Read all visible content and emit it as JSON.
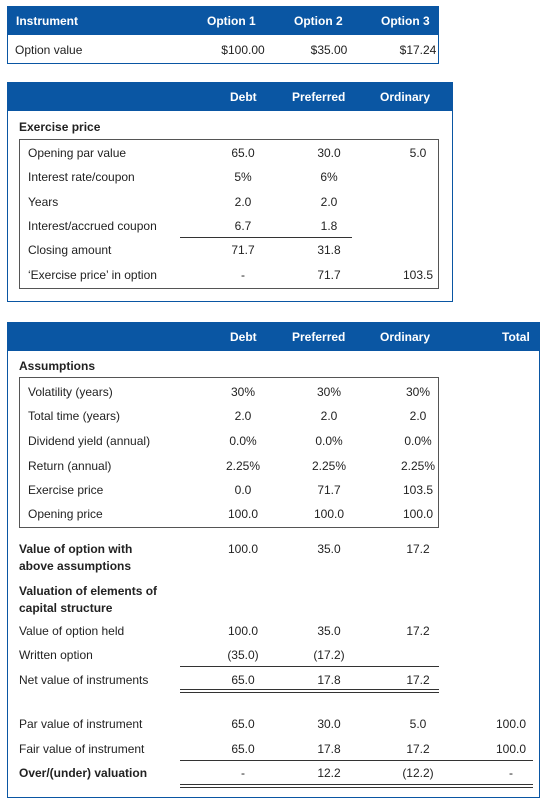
{
  "table1": {
    "headers": [
      "Instrument",
      "Option 1",
      "Option 2",
      "Option 3"
    ],
    "row": {
      "label": "Option value",
      "values": [
        "$100.00",
        "$35.00",
        "$17.24"
      ]
    }
  },
  "table2": {
    "headers": [
      "Debt",
      "Preferred",
      "Ordinary"
    ],
    "section": "Exercise price",
    "rows": [
      {
        "label": "Opening par value",
        "values": [
          "65.0",
          "30.0",
          "5.0"
        ]
      },
      {
        "label": "Interest rate/coupon",
        "values": [
          "5%",
          "6%",
          ""
        ]
      },
      {
        "label": "Years",
        "values": [
          "2.0",
          "2.0",
          ""
        ]
      },
      {
        "label": "Interest/accrued coupon",
        "values": [
          "6.7",
          "1.8",
          ""
        ]
      },
      {
        "label": "Closing amount",
        "values": [
          "71.7",
          "31.8",
          ""
        ]
      },
      {
        "label": "‘Exercise price’ in option",
        "values": [
          "-",
          "71.7",
          "103.5"
        ]
      }
    ]
  },
  "table3": {
    "headers": [
      "Debt",
      "Preferred",
      "Ordinary",
      "Total"
    ],
    "section": "Assumptions",
    "assumptions": [
      {
        "label": "Volatility (years)",
        "values": [
          "30%",
          "30%",
          "30%"
        ]
      },
      {
        "label": "Total time (years)",
        "values": [
          "2.0",
          "2.0",
          "2.0"
        ]
      },
      {
        "label": "Dividend yield (annual)",
        "values": [
          "0.0%",
          "0.0%",
          "0.0%"
        ]
      },
      {
        "label": "Return (annual)",
        "values": [
          "2.25%",
          "2.25%",
          "2.25%"
        ]
      },
      {
        "label": "Exercise price",
        "values": [
          "0.0",
          "71.7",
          "103.5"
        ]
      },
      {
        "label": "Opening price",
        "values": [
          "100.0",
          "100.0",
          "100.0"
        ]
      }
    ],
    "value_option_label_1": "Value of option with",
    "value_option_label_2": "above assumptions",
    "value_option_values": [
      "100.0",
      "35.0",
      "17.2"
    ],
    "valuation_label_1": "Valuation of elements of",
    "valuation_label_2": "capital structure",
    "valuation_rows": [
      {
        "label": "Value of option held",
        "values": [
          "100.0",
          "35.0",
          "17.2"
        ]
      },
      {
        "label": "Written option",
        "values": [
          "(35.0)",
          "(17.2)",
          ""
        ]
      },
      {
        "label": "Net value of instruments",
        "values": [
          "65.0",
          "17.8",
          "17.2"
        ]
      }
    ],
    "par_row": {
      "label": "Par value of instrument",
      "values": [
        "65.0",
        "30.0",
        "5.0",
        "100.0"
      ]
    },
    "fair_row": {
      "label": "Fair value of instrument",
      "values": [
        "65.0",
        "17.8",
        "17.2",
        "100.0"
      ]
    },
    "over_row": {
      "label": "Over/(under) valuation",
      "values": [
        "-",
        "12.2",
        "(12.2)",
        "-"
      ]
    }
  }
}
